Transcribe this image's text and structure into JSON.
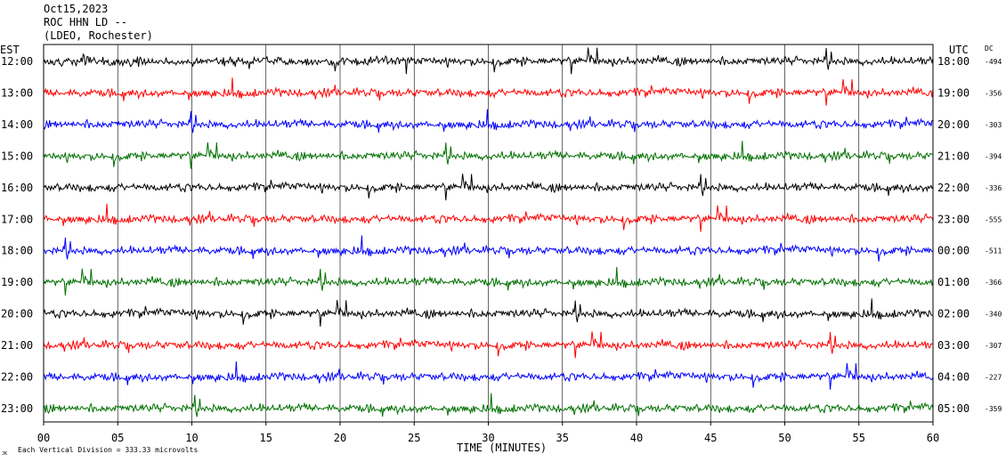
{
  "header": {
    "date": "Oct15,2023",
    "station": "ROC HHN LD --",
    "location": "(LDEO, Rochester)"
  },
  "chart_data": {
    "type": "line",
    "title": "Oct15,2023 ROC HHN LD --",
    "xlabel": "TIME (MINUTES)",
    "xlim": [
      0,
      60
    ],
    "x_ticks": [
      "00",
      "05",
      "10",
      "15",
      "20",
      "25",
      "30",
      "35",
      "40",
      "45",
      "50",
      "55",
      "60"
    ],
    "left_axis_label": "EST",
    "right_axis_label": "UTC",
    "dc_label": "DC",
    "scale_note": "Each Vertical Division = 333.33 microvolts",
    "corner_mark": "JK",
    "trace_colors": [
      "#000000",
      "#ff0000",
      "#0000ff",
      "#007000"
    ],
    "rows": [
      {
        "est": "12:00",
        "utc": "18:00",
        "dc": "-494"
      },
      {
        "est": "13:00",
        "utc": "19:00",
        "dc": "-356"
      },
      {
        "est": "14:00",
        "utc": "20:00",
        "dc": "-303"
      },
      {
        "est": "15:00",
        "utc": "21:00",
        "dc": "-394"
      },
      {
        "est": "16:00",
        "utc": "22:00",
        "dc": "-336"
      },
      {
        "est": "17:00",
        "utc": "23:00",
        "dc": "-555"
      },
      {
        "est": "18:00",
        "utc": "00:00",
        "dc": "-511"
      },
      {
        "est": "19:00",
        "utc": "01:00",
        "dc": "-366"
      },
      {
        "est": "20:00",
        "utc": "02:00",
        "dc": "-340"
      },
      {
        "est": "21:00",
        "utc": "03:00",
        "dc": "-307"
      },
      {
        "est": "22:00",
        "utc": "04:00",
        "dc": "-227"
      },
      {
        "est": "23:00",
        "utc": "05:00",
        "dc": "-359"
      }
    ]
  }
}
